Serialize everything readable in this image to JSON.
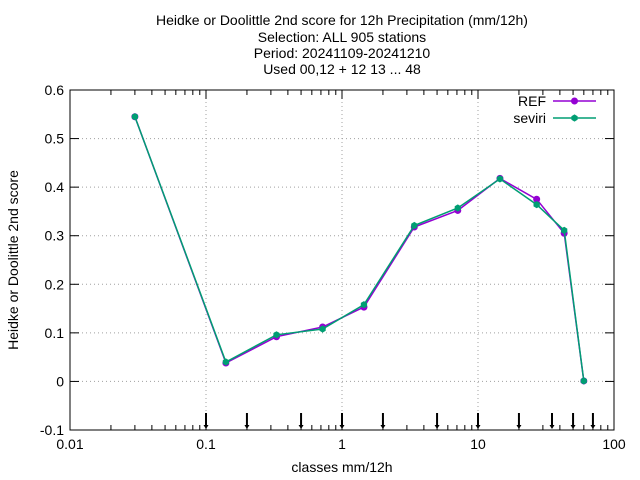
{
  "chart_data": {
    "type": "line",
    "title_lines": [
      "Heidke or Doolittle 2nd score  for 12h Precipitation (mm/12h)",
      "Selection: ALL    905 stations",
      "Period: 20241109-20241210",
      "Used 00,12 + 12 13 ... 48"
    ],
    "xlabel": "classes mm/12h",
    "ylabel": "Heidke or Doolittle 2nd score",
    "xscale": "log",
    "xlim": [
      0.01,
      100
    ],
    "ylim": [
      -0.1,
      0.6
    ],
    "x_ticks": [
      "0.01",
      "0.1",
      "1",
      "10",
      "100"
    ],
    "y_ticks": [
      "-0.1",
      "0",
      "0.1",
      "0.2",
      "0.3",
      "0.4",
      "0.5",
      "0.6"
    ],
    "grid": true,
    "legend_position": "top-right",
    "class_thresholds": [
      0.1,
      0.2,
      0.5,
      1,
      2,
      5,
      10,
      20,
      35,
      50,
      70
    ],
    "series": [
      {
        "name": "REF",
        "color": "#9400d3",
        "x": [
          0.03,
          0.14,
          0.33,
          0.72,
          1.45,
          3.4,
          7.1,
          14.5,
          27,
          43,
          60
        ],
        "values": [
          0.545,
          0.038,
          0.092,
          0.112,
          0.153,
          0.318,
          0.352,
          0.418,
          0.375,
          0.305,
          0.001
        ]
      },
      {
        "name": "seviri",
        "color": "#009e73",
        "x": [
          0.03,
          0.14,
          0.33,
          0.72,
          1.45,
          3.4,
          7.1,
          14.5,
          27,
          43,
          60
        ],
        "values": [
          0.545,
          0.04,
          0.096,
          0.108,
          0.158,
          0.321,
          0.357,
          0.417,
          0.364,
          0.311,
          0.001
        ]
      }
    ]
  }
}
